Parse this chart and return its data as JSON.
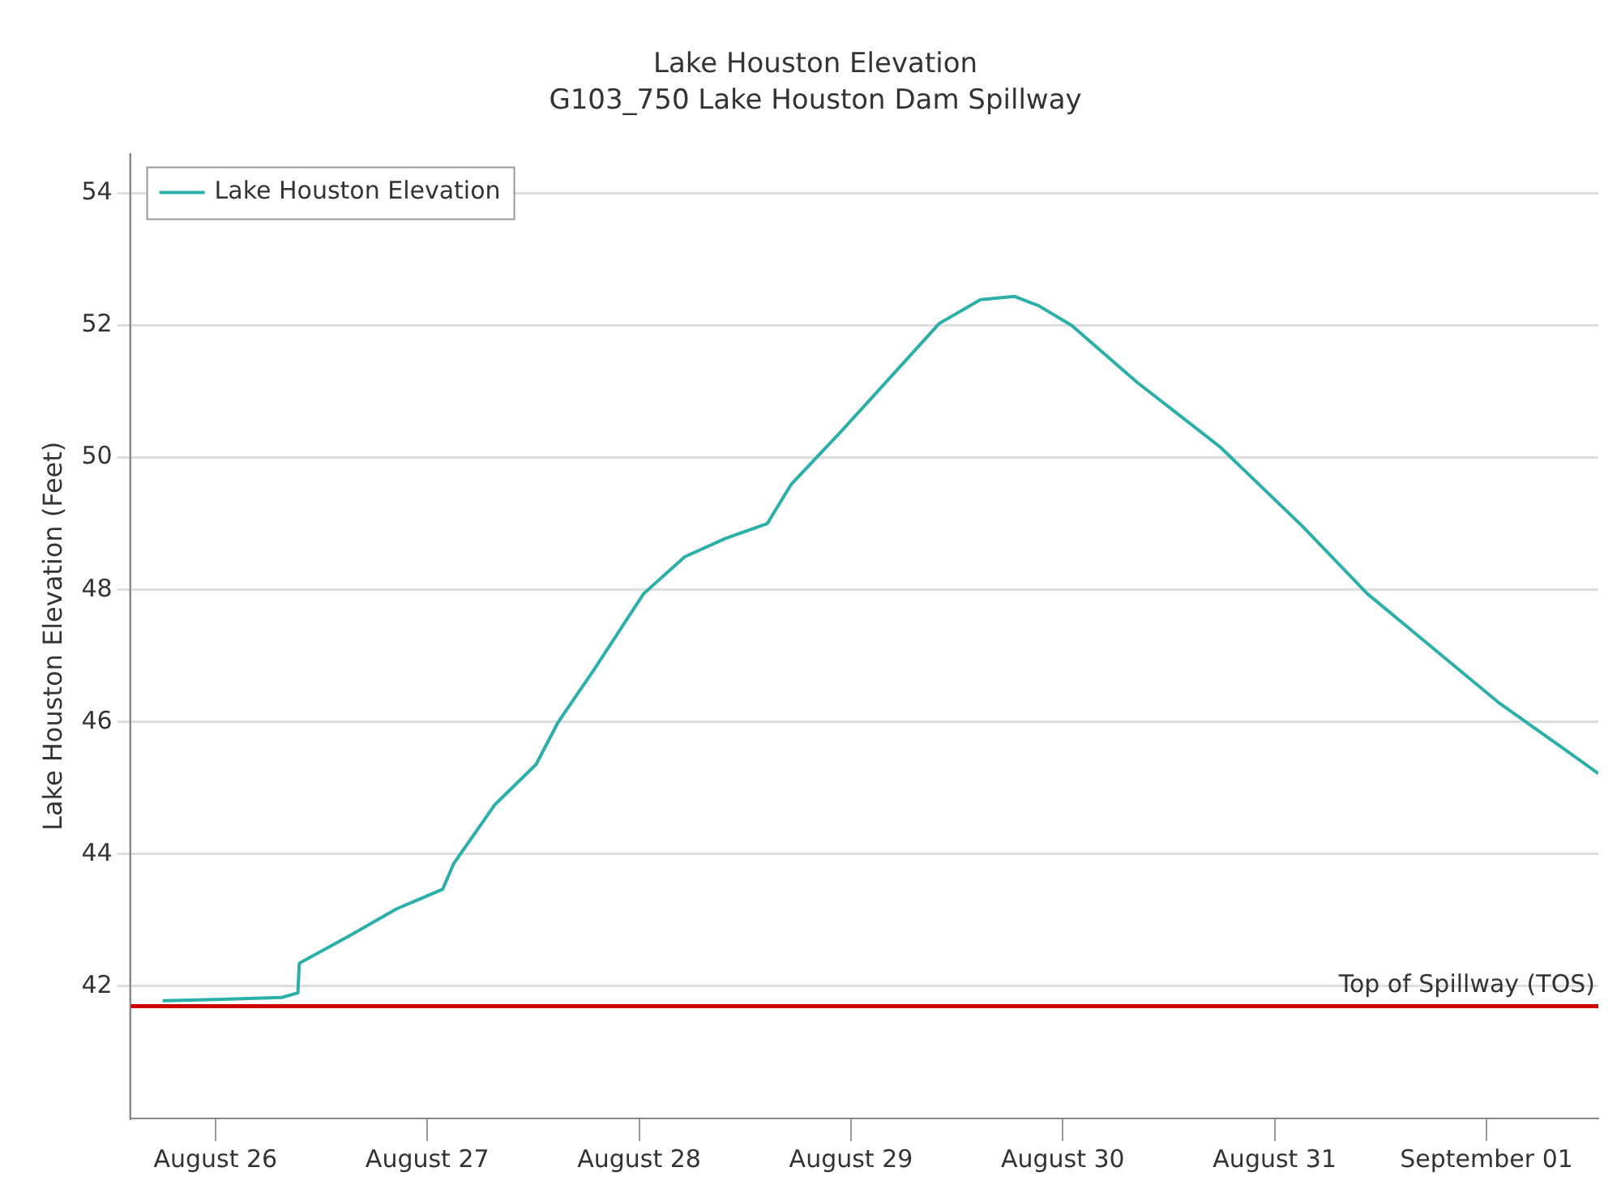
{
  "chart_data": {
    "type": "line",
    "title": "Lake Houston Elevation",
    "subtitle": "G103_750 Lake Houston Dam Spillway",
    "ylabel": "Lake Houston Elevation (Feet)",
    "xlim": [
      "--08-25T14:20",
      "--09-01T12:40"
    ],
    "xticks": [
      {
        "value": "--08-26",
        "label": "August 26"
      },
      {
        "value": "--08-27",
        "label": "August 27"
      },
      {
        "value": "--08-28",
        "label": "August 28"
      },
      {
        "value": "--08-29",
        "label": "August 29"
      },
      {
        "value": "--08-30",
        "label": "August 30"
      },
      {
        "value": "--08-31",
        "label": "August 31"
      },
      {
        "value": "--09-01",
        "label": "September 01"
      }
    ],
    "ylim": [
      40,
      54.6
    ],
    "yticks": [
      42,
      44,
      46,
      48,
      50,
      52,
      54
    ],
    "grid": "y",
    "legend": "top left",
    "marker": "none",
    "line_style": "solid",
    "series": [
      {
        "name": "Lake Houston Elevation",
        "color": "#2ab0a8",
        "x": [
          "--08-25T18:00",
          "--08-26T00:00",
          "--08-26T07:30",
          "--08-26T09:20",
          "--08-26T09:30",
          "--08-26T15:00",
          "--08-26T20:30",
          "--08-27T01:45",
          "--08-27T03:00",
          "--08-27T07:40",
          "--08-27T12:20",
          "--08-27T14:50",
          "--08-27T18:50",
          "--08-28T00:30",
          "--08-28T05:10",
          "--08-28T09:50",
          "--08-28T14:30",
          "--08-28T17:15",
          "--08-28T22:50",
          "--08-29T04:30",
          "--08-29T10:00",
          "--08-29T14:40",
          "--08-29T18:30",
          "--08-29T21:15",
          "--08-30T01:00",
          "--08-30T08:25",
          "--08-30T17:45",
          "--08-31T03:05",
          "--08-31T10:30",
          "--08-31T18:00",
          "--09-01T01:30",
          "--09-01T08:55",
          "--09-01T12:40"
        ],
        "values": [
          41.78,
          41.8,
          41.83,
          41.9,
          42.35,
          42.75,
          43.17,
          43.47,
          43.86,
          44.75,
          45.36,
          46.0,
          46.78,
          47.94,
          48.5,
          48.78,
          49.0,
          49.6,
          50.39,
          51.22,
          52.03,
          52.39,
          52.44,
          52.3,
          52.0,
          51.14,
          50.17,
          48.97,
          47.94,
          47.11,
          46.28,
          45.58,
          45.22
        ]
      }
    ],
    "ref_lines": [
      {
        "axis": "y",
        "value": 41.7,
        "label": "Top of Spillway (TOS)",
        "color": "#cc0000",
        "line_style": "solid"
      }
    ]
  }
}
